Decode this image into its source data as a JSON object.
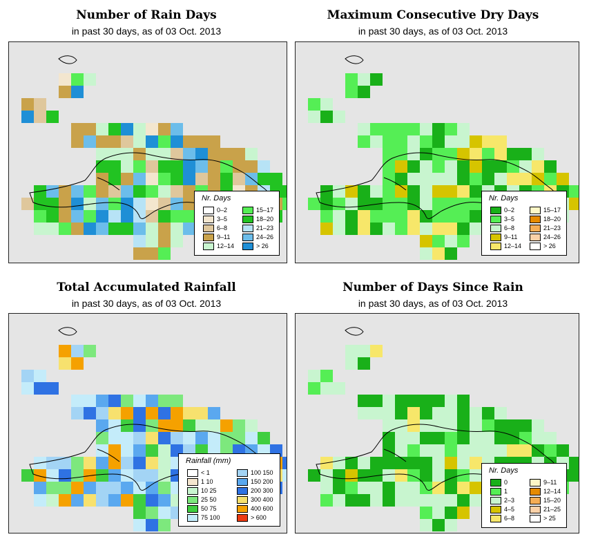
{
  "panels": [
    {
      "id": "rain-days",
      "title": "Number of Rain Days",
      "subtitle": "in past 30 days, as of  03 Oct. 2013",
      "legend_title": "Nr. Days",
      "legend": [
        {
          "label": "0–2",
          "color": "#ffffff"
        },
        {
          "label": "3–5",
          "color": "#f3e6cf"
        },
        {
          "label": "6–8",
          "color": "#dfc79c"
        },
        {
          "label": "9–11",
          "color": "#c9a24a"
        },
        {
          "label": "12–14",
          "color": "#c8f5cf"
        },
        {
          "label": "15–17",
          "color": "#55ee55"
        },
        {
          "label": "18–20",
          "color": "#22c322"
        },
        {
          "label": "21–23",
          "color": "#b7e3f6"
        },
        {
          "label": "24–26",
          "color": "#6cbdea"
        },
        {
          "label": "> 26",
          "color": "#1f8fd6"
        }
      ]
    },
    {
      "id": "dry-days",
      "title": "Maximum Consecutive Dry Days",
      "subtitle": "in past 30 days, as of  03 Oct. 2013",
      "legend_title": "Nr. Days",
      "legend": [
        {
          "label": "0–2",
          "color": "#19b019"
        },
        {
          "label": "3–5",
          "color": "#55ee55"
        },
        {
          "label": "6–8",
          "color": "#c8f5cf"
        },
        {
          "label": "9–11",
          "color": "#d6c400"
        },
        {
          "label": "12–14",
          "color": "#f7e76a"
        },
        {
          "label": "15–17",
          "color": "#fdf7c6"
        },
        {
          "label": "18–20",
          "color": "#e58a00"
        },
        {
          "label": "21–23",
          "color": "#f5ad55"
        },
        {
          "label": "24–26",
          "color": "#fbd1a8"
        },
        {
          "label": "> 26",
          "color": "#ffffff"
        }
      ]
    },
    {
      "id": "rainfall",
      "title": "Total Accumulated Rainfall",
      "subtitle": "in past 30 days, as of  03 Oct. 2013",
      "legend_title": "Rainfall (mm)",
      "legend": [
        {
          "label": "< 1",
          "color": "#ffffff"
        },
        {
          "label": "1    10",
          "color": "#f5e6cf"
        },
        {
          "label": "10    25",
          "color": "#c8f5cf"
        },
        {
          "label": "25    50",
          "color": "#7de87d"
        },
        {
          "label": "50    75",
          "color": "#3fce3f"
        },
        {
          "label": "75   100",
          "color": "#c4ecfa"
        },
        {
          "label": "100  150",
          "color": "#a3d4f5"
        },
        {
          "label": "150  200",
          "color": "#5aa8ef"
        },
        {
          "label": "200  300",
          "color": "#2f72e3"
        },
        {
          "label": "300  400",
          "color": "#f7e16e"
        },
        {
          "label": "400  600",
          "color": "#f5a100"
        },
        {
          "label": "> 600",
          "color": "#ec3a12"
        }
      ]
    },
    {
      "id": "since-rain",
      "title": "Number of Days Since Rain",
      "subtitle": "in past 30 days, as of  03 Oct. 2013",
      "legend_title": "Nr. Days",
      "legend": [
        {
          "label": "0",
          "color": "#19b019"
        },
        {
          "label": "1",
          "color": "#55ee55"
        },
        {
          "label": "2–3",
          "color": "#c8f5cf"
        },
        {
          "label": "4–5",
          "color": "#d6c400"
        },
        {
          "label": "6–8",
          "color": "#f7e76a"
        },
        {
          "label": "9–11",
          "color": "#fdf7c6"
        },
        {
          "label": "12–14",
          "color": "#e58a00"
        },
        {
          "label": "15–20",
          "color": "#f5ad55"
        },
        {
          "label": "21–25",
          "color": "#fbd1a8"
        },
        {
          "label": "> 25",
          "color": "#ffffff"
        }
      ]
    }
  ]
}
